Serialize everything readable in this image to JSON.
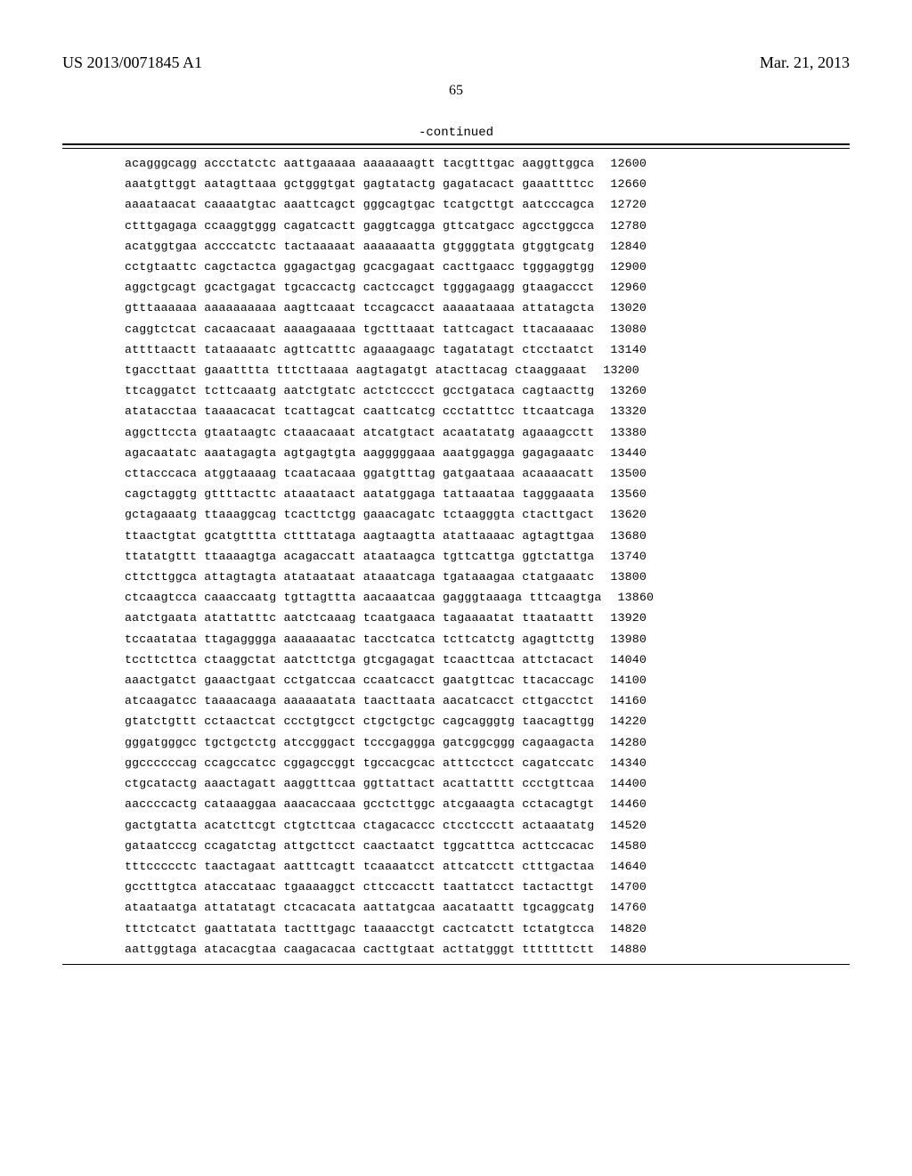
{
  "header": {
    "doc_id": "US 2013/0071845 A1",
    "date": "Mar. 21, 2013",
    "page_num": "65",
    "continued_label": "-continued"
  },
  "typography": {
    "body_font": "Times New Roman",
    "mono_font": "Courier New",
    "header_fontsize_pt": 18,
    "pagenum_fontsize_pt": 16,
    "seq_fontsize_pt": 13.2,
    "text_color": "#000000",
    "background_color": "#ffffff"
  },
  "sequence": {
    "group_len": 10,
    "groups_per_line": 6,
    "pos_width_chars": 5,
    "rows": [
      {
        "groups": [
          "acagggcagg",
          "accctatctc",
          "aattgaaaaa",
          "aaaaaaagtt",
          "tacgtttgac",
          "aaggttggca"
        ],
        "pos": 12600
      },
      {
        "groups": [
          "aaatgttggt",
          "aatagttaaa",
          "gctgggtgat",
          "gagtatactg",
          "gagatacact",
          "gaaattttcc"
        ],
        "pos": 12660
      },
      {
        "groups": [
          "aaaataacat",
          "caaaatgtac",
          "aaattcagct",
          "gggcagtgac",
          "tcatgcttgt",
          "aatcccagca"
        ],
        "pos": 12720
      },
      {
        "groups": [
          "ctttgagaga",
          "ccaaggtggg",
          "cagatcactt",
          "gaggtcagga",
          "gttcatgacc",
          "agcctggcca"
        ],
        "pos": 12780
      },
      {
        "groups": [
          "acatggtgaa",
          "accccatctc",
          "tactaaaaat",
          "aaaaaaatta",
          "gtggggtata",
          "gtggtgcatg"
        ],
        "pos": 12840
      },
      {
        "groups": [
          "cctgtaattc",
          "cagctactca",
          "ggagactgag",
          "gcacgagaat",
          "cacttgaacc",
          "tgggaggtgg"
        ],
        "pos": 12900
      },
      {
        "groups": [
          "aggctgcagt",
          "gcactgagat",
          "tgcaccactg",
          "cactccagct",
          "tgggagaagg",
          "gtaagaccct"
        ],
        "pos": 12960
      },
      {
        "groups": [
          "gtttaaaaaa",
          "aaaaaaaaaa",
          "aagttcaaat",
          "tccagcacct",
          "aaaaataaaa",
          "attatagcta"
        ],
        "pos": 13020
      },
      {
        "groups": [
          "caggtctcat",
          "cacaacaaat",
          "aaaagaaaaa",
          "tgctttaaat",
          "tattcagact",
          "ttacaaaaac"
        ],
        "pos": 13080
      },
      {
        "groups": [
          "attttaactt",
          "tataaaaatc",
          "agttcatttc",
          "agaaagaagc",
          "tagatatagt",
          "ctcctaatct"
        ],
        "pos": 13140
      },
      {
        "groups": [
          "tgaccttaat",
          "gaaatttta",
          "tttcttaaaa",
          "aagtagatgt",
          "atacttacag",
          "ctaaggaaat"
        ],
        "pos": 13200
      },
      {
        "groups": [
          "ttcaggatct",
          "tcttcaaatg",
          "aatctgtatc",
          "actctcccct",
          "gcctgataca",
          "cagtaacttg"
        ],
        "pos": 13260
      },
      {
        "groups": [
          "atatacctaa",
          "taaaacacat",
          "tcattagcat",
          "caattcatcg",
          "ccctatttcc",
          "ttcaatcaga"
        ],
        "pos": 13320
      },
      {
        "groups": [
          "aggcttccta",
          "gtaataagtc",
          "ctaaacaaat",
          "atcatgtact",
          "acaatatatg",
          "agaaagcctt"
        ],
        "pos": 13380
      },
      {
        "groups": [
          "agacaatatc",
          "aaatagagta",
          "agtgagtgta",
          "aagggggaaa",
          "aaatggagga",
          "gagagaaatc"
        ],
        "pos": 13440
      },
      {
        "groups": [
          "cttacccaca",
          "atggtaaaag",
          "tcaatacaaa",
          "ggatgtttag",
          "gatgaataaa",
          "acaaaacatt"
        ],
        "pos": 13500
      },
      {
        "groups": [
          "cagctaggtg",
          "gttttacttc",
          "ataaataact",
          "aatatggaga",
          "tattaaataa",
          "tagggaaata"
        ],
        "pos": 13560
      },
      {
        "groups": [
          "gctagaaatg",
          "ttaaaggcag",
          "tcacttctgg",
          "gaaacagatc",
          "tctaagggta",
          "ctacttgact"
        ],
        "pos": 13620
      },
      {
        "groups": [
          "ttaactgtat",
          "gcatgtttta",
          "cttttataga",
          "aagtaagtta",
          "atattaaaac",
          "agtagttgaa"
        ],
        "pos": 13680
      },
      {
        "groups": [
          "ttatatgttt",
          "ttaaaagtga",
          "acagaccatt",
          "ataataagca",
          "tgttcattga",
          "ggtctattga"
        ],
        "pos": 13740
      },
      {
        "groups": [
          "cttcttggca",
          "attagtagta",
          "atataataat",
          "ataaatcaga",
          "tgataaagaa",
          "ctatgaaatc"
        ],
        "pos": 13800
      },
      {
        "groups": [
          "ctcaagtcca",
          "caaaccaatg",
          "tgttagttta",
          "aacaaatcaa",
          "gagggtaaaga",
          "tttcaagtga"
        ],
        "pos": 13860
      },
      {
        "groups": [
          "aatctgaata",
          "atattatttc",
          "aatctcaaag",
          "tcaatgaaca",
          "tagaaaatat",
          "ttaataattt"
        ],
        "pos": 13920
      },
      {
        "groups": [
          "tccaatataa",
          "ttagagggga",
          "aaaaaaatac",
          "tacctcatca",
          "tcttcatctg",
          "agagttcttg"
        ],
        "pos": 13980
      },
      {
        "groups": [
          "tccttcttca",
          "ctaaggctat",
          "aatcttctga",
          "gtcgagagat",
          "tcaacttcaa",
          "attctacact"
        ],
        "pos": 14040
      },
      {
        "groups": [
          "aaactgatct",
          "gaaactgaat",
          "cctgatccaa",
          "ccaatcacct",
          "gaatgttcac",
          "ttacaccagc"
        ],
        "pos": 14100
      },
      {
        "groups": [
          "atcaagatcc",
          "taaaacaaga",
          "aaaaaatata",
          "taacttaata",
          "aacatcacct",
          "cttgacctct"
        ],
        "pos": 14160
      },
      {
        "groups": [
          "gtatctgttt",
          "cctaactcat",
          "ccctgtgcct",
          "ctgctgctgc",
          "cagcagggtg",
          "taacagttgg"
        ],
        "pos": 14220
      },
      {
        "groups": [
          "gggatgggcc",
          "tgctgctctg",
          "atccgggact",
          "tcccgaggga",
          "gatcggcggg",
          "cagaagacta"
        ],
        "pos": 14280
      },
      {
        "groups": [
          "ggccccccag",
          "ccagccatcc",
          "cggagccggt",
          "tgccacgcac",
          "atttcctcct",
          "cagatccatc"
        ],
        "pos": 14340
      },
      {
        "groups": [
          "ctgcatactg",
          "aaactagatt",
          "aaggtttcaa",
          "ggttattact",
          "acattatttt",
          "ccctgttcaa"
        ],
        "pos": 14400
      },
      {
        "groups": [
          "aaccccactg",
          "cataaaggaa",
          "aaacaccaaa",
          "gcctcttggc",
          "atcgaaagta",
          "cctacagtgt"
        ],
        "pos": 14460
      },
      {
        "groups": [
          "gactgtatta",
          "acatcttcgt",
          "ctgtcttcaa",
          "ctagacaccc",
          "ctcctccctt",
          "actaaatatg"
        ],
        "pos": 14520
      },
      {
        "groups": [
          "gataatcccg",
          "ccagatctag",
          "attgcttcct",
          "caactaatct",
          "tggcatttca",
          "acttccacac"
        ],
        "pos": 14580
      },
      {
        "groups": [
          "tttccccctc",
          "taactagaat",
          "aatttcagtt",
          "tcaaaatcct",
          "attcatcctt",
          "ctttgactaa"
        ],
        "pos": 14640
      },
      {
        "groups": [
          "gcctttgtca",
          "ataccataac",
          "tgaaaaggct",
          "cttccacctt",
          "taattatcct",
          "tactacttgt"
        ],
        "pos": 14700
      },
      {
        "groups": [
          "ataataatga",
          "attatatagt",
          "ctcacacata",
          "aattatgcaa",
          "aacataattt",
          "tgcaggcatg"
        ],
        "pos": 14760
      },
      {
        "groups": [
          "tttctcatct",
          "gaattatata",
          "tactttgagc",
          "taaaacctgt",
          "cactcatctt",
          "tctatgtcca"
        ],
        "pos": 14820
      },
      {
        "groups": [
          "aattggtaga",
          "atacacgtaa",
          "caagacacaa",
          "cacttgtaat",
          "acttatgggt",
          "tttttttctt"
        ],
        "pos": 14880
      }
    ]
  }
}
